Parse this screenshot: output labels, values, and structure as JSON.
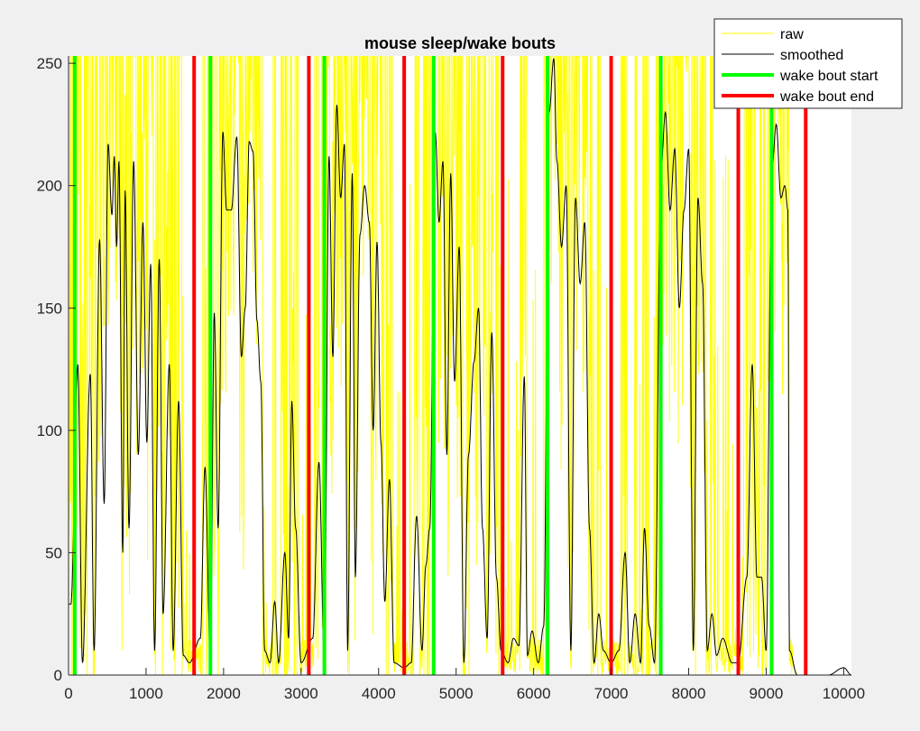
{
  "chart_data": {
    "type": "line",
    "title": "mouse sleep/wake bouts",
    "xlabel": "",
    "ylabel": "",
    "xlim": [
      0,
      10100
    ],
    "ylim": [
      0,
      253
    ],
    "x_ticks": [
      0,
      1000,
      2000,
      3000,
      4000,
      5000,
      6000,
      7000,
      8000,
      9000,
      10000
    ],
    "x_tick_labels": [
      "0",
      "1000",
      "2000",
      "3000",
      "4000",
      "5000",
      "6000",
      "7000",
      "8000",
      "9000",
      "10000"
    ],
    "y_ticks": [
      0,
      50,
      100,
      150,
      200,
      250
    ],
    "y_tick_labels": [
      "0",
      "50",
      "100",
      "150",
      "200",
      "250"
    ],
    "grid": false,
    "legend_position": "top-right",
    "legend": [
      {
        "label": "raw",
        "color": "#ffff00",
        "style": "thin"
      },
      {
        "label": "smoothed",
        "color": "#000000",
        "style": "thin"
      },
      {
        "label": "wake bout start",
        "color": "#00ff00",
        "style": "thick"
      },
      {
        "label": "wake bout end",
        "color": "#ff0000",
        "style": "thick"
      }
    ],
    "colors": {
      "raw": "#ffff00",
      "smoothed": "#000000",
      "wake_start": "#00ff00",
      "wake_end": "#ff0000"
    },
    "wake_bout_starts": [
      80,
      1830,
      3300,
      4710,
      6180,
      7640,
      9070
    ],
    "wake_bout_ends": [
      1620,
      3100,
      4330,
      5600,
      7000,
      8640,
      9510
    ],
    "smoothed_peaks": [
      [
        30,
        29
      ],
      [
        120,
        127
      ],
      [
        180,
        5
      ],
      [
        280,
        123
      ],
      [
        330,
        10
      ],
      [
        400,
        178
      ],
      [
        460,
        70
      ],
      [
        510,
        217
      ],
      [
        560,
        188
      ],
      [
        590,
        212
      ],
      [
        620,
        175
      ],
      [
        650,
        210
      ],
      [
        700,
        50
      ],
      [
        730,
        198
      ],
      [
        780,
        60
      ],
      [
        840,
        210
      ],
      [
        900,
        90
      ],
      [
        960,
        185
      ],
      [
        1010,
        95
      ],
      [
        1060,
        168
      ],
      [
        1110,
        10
      ],
      [
        1170,
        170
      ],
      [
        1220,
        25
      ],
      [
        1300,
        127
      ],
      [
        1350,
        10
      ],
      [
        1420,
        112
      ],
      [
        1480,
        8
      ],
      [
        1560,
        5
      ],
      [
        1700,
        15
      ],
      [
        1760,
        85
      ],
      [
        1830,
        5
      ],
      [
        1880,
        148
      ],
      [
        1930,
        60
      ],
      [
        1990,
        222
      ],
      [
        2040,
        190
      ],
      [
        2100,
        190
      ],
      [
        2170,
        220
      ],
      [
        2230,
        130
      ],
      [
        2280,
        150
      ],
      [
        2330,
        218
      ],
      [
        2380,
        214
      ],
      [
        2430,
        145
      ],
      [
        2480,
        120
      ],
      [
        2530,
        10
      ],
      [
        2600,
        5
      ],
      [
        2660,
        30
      ],
      [
        2710,
        5
      ],
      [
        2790,
        50
      ],
      [
        2840,
        15
      ],
      [
        2880,
        112
      ],
      [
        2930,
        60
      ],
      [
        3000,
        5
      ],
      [
        3150,
        15
      ],
      [
        3230,
        87
      ],
      [
        3300,
        5
      ],
      [
        3360,
        212
      ],
      [
        3410,
        130
      ],
      [
        3460,
        233
      ],
      [
        3510,
        195
      ],
      [
        3560,
        217
      ],
      [
        3600,
        10
      ],
      [
        3660,
        205
      ],
      [
        3700,
        40
      ],
      [
        3760,
        180
      ],
      [
        3820,
        200
      ],
      [
        3880,
        185
      ],
      [
        3930,
        100
      ],
      [
        3980,
        177
      ],
      [
        4030,
        95
      ],
      [
        4080,
        30
      ],
      [
        4140,
        80
      ],
      [
        4200,
        5
      ],
      [
        4330,
        3
      ],
      [
        4420,
        5
      ],
      [
        4490,
        65
      ],
      [
        4560,
        10
      ],
      [
        4610,
        45
      ],
      [
        4660,
        60
      ],
      [
        4730,
        222
      ],
      [
        4780,
        185
      ],
      [
        4830,
        210
      ],
      [
        4880,
        90
      ],
      [
        4930,
        205
      ],
      [
        4980,
        120
      ],
      [
        5040,
        175
      ],
      [
        5100,
        5
      ],
      [
        5160,
        90
      ],
      [
        5230,
        128
      ],
      [
        5290,
        150
      ],
      [
        5340,
        60
      ],
      [
        5400,
        15
      ],
      [
        5460,
        140
      ],
      [
        5520,
        40
      ],
      [
        5580,
        10
      ],
      [
        5670,
        5
      ],
      [
        5740,
        15
      ],
      [
        5810,
        12
      ],
      [
        5880,
        122
      ],
      [
        5920,
        8
      ],
      [
        5980,
        18
      ],
      [
        6060,
        5
      ],
      [
        6130,
        20
      ],
      [
        6200,
        230
      ],
      [
        6260,
        252
      ],
      [
        6300,
        210
      ],
      [
        6360,
        175
      ],
      [
        6420,
        200
      ],
      [
        6480,
        10
      ],
      [
        6540,
        195
      ],
      [
        6600,
        160
      ],
      [
        6660,
        185
      ],
      [
        6720,
        60
      ],
      [
        6780,
        5
      ],
      [
        6840,
        25
      ],
      [
        6900,
        10
      ],
      [
        7000,
        5
      ],
      [
        7100,
        10
      ],
      [
        7180,
        50
      ],
      [
        7240,
        5
      ],
      [
        7310,
        25
      ],
      [
        7380,
        5
      ],
      [
        7430,
        60
      ],
      [
        7490,
        20
      ],
      [
        7560,
        5
      ],
      [
        7640,
        205
      ],
      [
        7700,
        230
      ],
      [
        7760,
        190
      ],
      [
        7820,
        215
      ],
      [
        7880,
        150
      ],
      [
        7940,
        190
      ],
      [
        8000,
        215
      ],
      [
        8060,
        10
      ],
      [
        8120,
        195
      ],
      [
        8180,
        160
      ],
      [
        8240,
        10
      ],
      [
        8300,
        25
      ],
      [
        8360,
        8
      ],
      [
        8440,
        15
      ],
      [
        8560,
        5
      ],
      [
        8640,
        5
      ],
      [
        8750,
        40
      ],
      [
        8820,
        127
      ],
      [
        8880,
        40
      ],
      [
        8940,
        40
      ],
      [
        9000,
        10
      ],
      [
        9070,
        205
      ],
      [
        9130,
        225
      ],
      [
        9190,
        195
      ],
      [
        9240,
        200
      ],
      [
        9280,
        190
      ],
      [
        9300,
        10
      ],
      [
        9400,
        0
      ],
      [
        9600,
        0
      ],
      [
        9800,
        0
      ],
      [
        10000,
        3
      ],
      [
        10100,
        0
      ]
    ]
  }
}
